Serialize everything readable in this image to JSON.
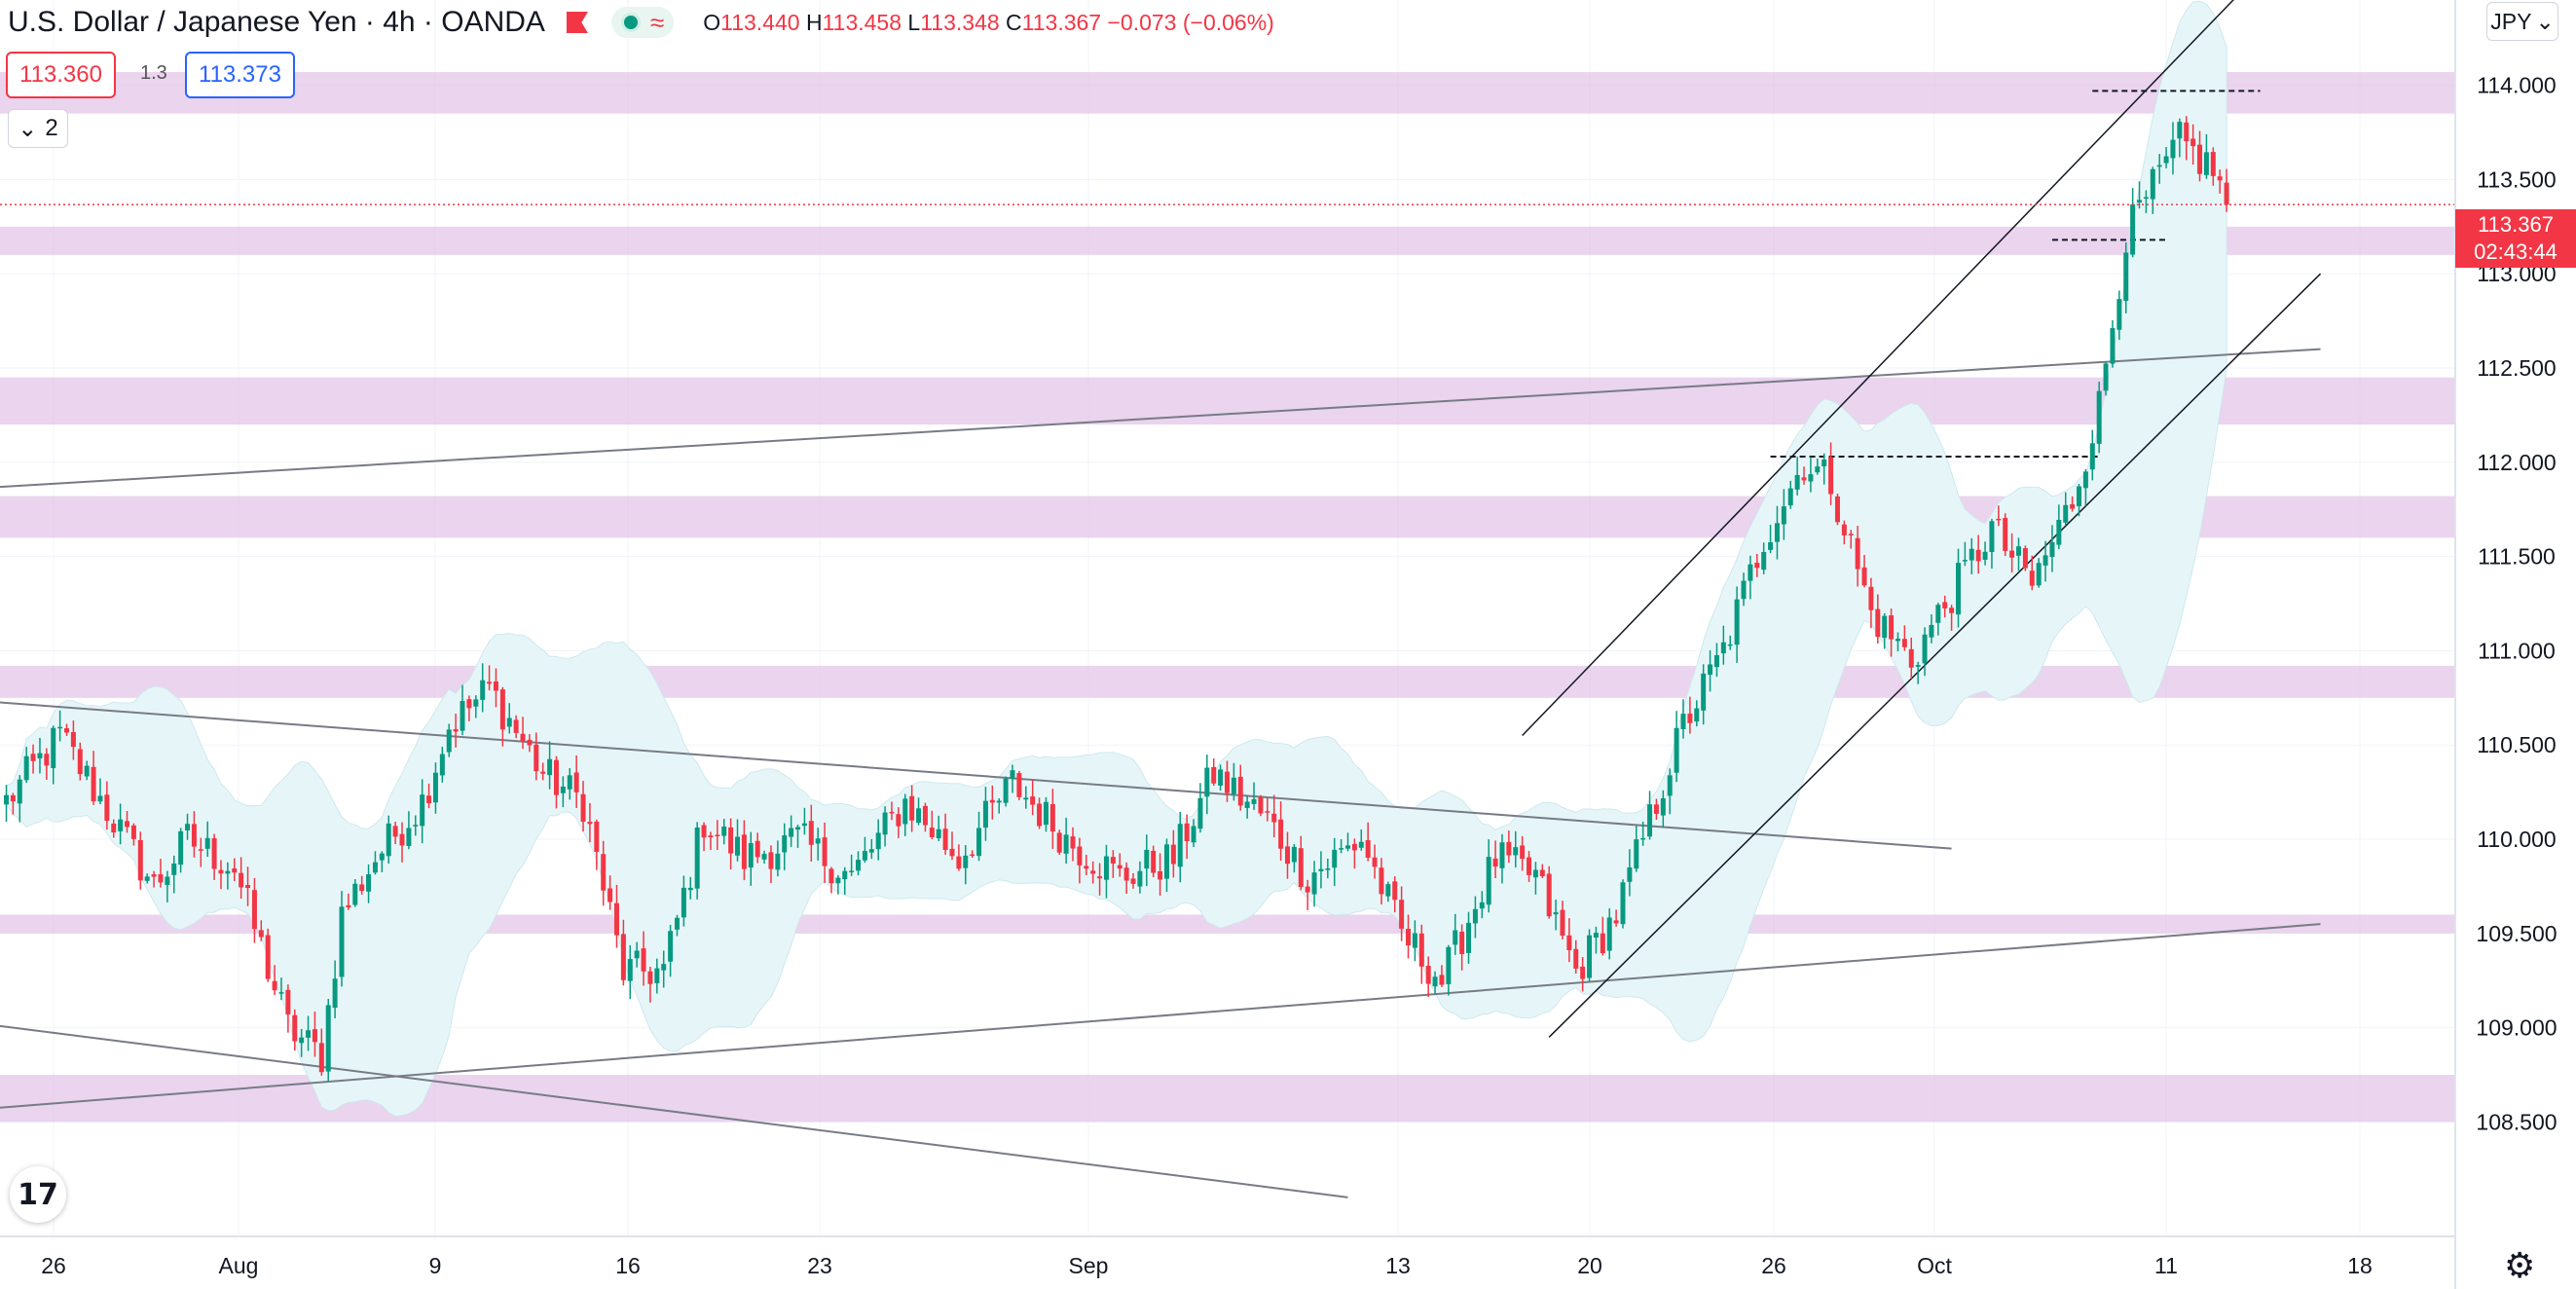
{
  "header": {
    "title": "U.S. Dollar / Japanese Yen · 4h · OANDA",
    "ohlc": {
      "o_label": "O",
      "o": "113.440",
      "h_label": "H",
      "h": "113.458",
      "l_label": "L",
      "l": "113.348",
      "c_label": "C",
      "c": "113.367",
      "change": "−0.073 (−0.06%)"
    },
    "sell_price": "113.360",
    "spread": "1.3",
    "buy_price": "113.373",
    "collapse_count": "2",
    "currency_button": "JPY",
    "last_price": "113.367",
    "countdown": "02:43:44",
    "icons": {
      "flag": "flag-icon",
      "collapse": "chevron-down-icon",
      "currency": "chevron-down-icon",
      "logo": "tradingview-logo-icon",
      "settings": "gear-icon"
    },
    "logo_text": "17",
    "settings_glyph": "⚙"
  },
  "chart_data": {
    "type": "candlestick",
    "symbol": "USDJPY",
    "interval": "4h",
    "ylim": [
      108.2,
      114.55
    ],
    "y_ticks": [
      108.5,
      109.0,
      109.5,
      110.0,
      110.5,
      111.0,
      111.5,
      112.0,
      112.5,
      113.0,
      113.5,
      114.0
    ],
    "y_tick_labels": [
      "108.500",
      "109.000",
      "109.500",
      "110.000",
      "110.500",
      "111.000",
      "111.500",
      "112.000",
      "112.500",
      "113.000",
      "113.500",
      "114.000"
    ],
    "x_tick_labels": [
      "26",
      "Aug",
      "9",
      "16",
      "23",
      "Sep",
      "13",
      "20",
      "26",
      "Oct",
      "11",
      "18"
    ],
    "candle_count": 340,
    "colors": {
      "up": "#089981",
      "down": "#f23645",
      "zone": "#e3c6e8",
      "band": "#e6f6f8",
      "trend": "#787b86"
    },
    "anchors": [
      {
        "i": 0,
        "p": 110.2
      },
      {
        "i": 8,
        "p": 110.55
      },
      {
        "i": 16,
        "p": 110.1
      },
      {
        "i": 22,
        "p": 109.75
      },
      {
        "i": 27,
        "p": 110.0
      },
      {
        "i": 34,
        "p": 109.85
      },
      {
        "i": 42,
        "p": 109.0
      },
      {
        "i": 47,
        "p": 108.85
      },
      {
        "i": 50,
        "p": 109.6
      },
      {
        "i": 55,
        "p": 109.9
      },
      {
        "i": 62,
        "p": 110.2
      },
      {
        "i": 66,
        "p": 110.6
      },
      {
        "i": 72,
        "p": 110.8
      },
      {
        "i": 80,
        "p": 110.35
      },
      {
        "i": 86,
        "p": 110.2
      },
      {
        "i": 92,
        "p": 109.3
      },
      {
        "i": 98,
        "p": 109.3
      },
      {
        "i": 104,
        "p": 110.1
      },
      {
        "i": 110,
        "p": 109.9
      },
      {
        "i": 118,
        "p": 110.0
      },
      {
        "i": 126,
        "p": 109.8
      },
      {
        "i": 134,
        "p": 110.2
      },
      {
        "i": 142,
        "p": 109.9
      },
      {
        "i": 150,
        "p": 110.3
      },
      {
        "i": 158,
        "p": 110.0
      },
      {
        "i": 166,
        "p": 109.8
      },
      {
        "i": 174,
        "p": 109.9
      },
      {
        "i": 180,
        "p": 110.35
      },
      {
        "i": 188,
        "p": 110.1
      },
      {
        "i": 194,
        "p": 109.8
      },
      {
        "i": 202,
        "p": 110.0
      },
      {
        "i": 208,
        "p": 109.5
      },
      {
        "i": 214,
        "p": 109.25
      },
      {
        "i": 222,
        "p": 109.9
      },
      {
        "i": 228,
        "p": 109.8
      },
      {
        "i": 234,
        "p": 109.3
      },
      {
        "i": 240,
        "p": 109.6
      },
      {
        "i": 250,
        "p": 110.6
      },
      {
        "i": 256,
        "p": 111.0
      },
      {
        "i": 262,
        "p": 111.6
      },
      {
        "i": 268,
        "p": 112.0
      },
      {
        "i": 272,
        "p": 111.9
      },
      {
        "i": 278,
        "p": 111.2
      },
      {
        "i": 284,
        "p": 110.95
      },
      {
        "i": 290,
        "p": 111.3
      },
      {
        "i": 296,
        "p": 111.65
      },
      {
        "i": 302,
        "p": 111.35
      },
      {
        "i": 308,
        "p": 111.8
      },
      {
        "i": 312,
        "p": 112.3
      },
      {
        "i": 316,
        "p": 113.2
      },
      {
        "i": 320,
        "p": 113.45
      },
      {
        "i": 324,
        "p": 113.7
      },
      {
        "i": 329,
        "p": 113.55
      },
      {
        "i": 331,
        "p": 113.367
      }
    ],
    "zones": [
      [
        113.85,
        114.07
      ],
      [
        113.1,
        113.25
      ],
      [
        112.2,
        112.45
      ],
      [
        111.6,
        111.82
      ],
      [
        110.75,
        110.92
      ],
      [
        109.5,
        109.6
      ],
      [
        108.5,
        108.75
      ]
    ],
    "trendlines": [
      {
        "from": {
          "i": -10,
          "p": 111.85
        },
        "to": {
          "i": 345,
          "p": 112.6
        }
      },
      {
        "from": {
          "i": -10,
          "p": 110.75
        },
        "to": {
          "i": 290,
          "p": 109.95
        }
      },
      {
        "from": {
          "i": -10,
          "p": 109.05
        },
        "to": {
          "i": 200,
          "p": 108.1
        }
      },
      {
        "from": {
          "i": -10,
          "p": 108.55
        },
        "to": {
          "i": 345,
          "p": 109.55
        }
      }
    ],
    "channel": [
      {
        "from": {
          "i": 226,
          "p": 110.55
        },
        "to": {
          "i": 336,
          "p": 114.6
        }
      },
      {
        "from": {
          "i": 230,
          "p": 108.95
        },
        "to": {
          "i": 345,
          "p": 113.0
        }
      }
    ],
    "dashed_levels": [
      {
        "p": 113.97,
        "i0": 311,
        "i1": 336
      },
      {
        "p": 113.18,
        "i0": 305,
        "i1": 322
      },
      {
        "p": 112.03,
        "i0": 263,
        "i1": 312
      }
    ]
  }
}
